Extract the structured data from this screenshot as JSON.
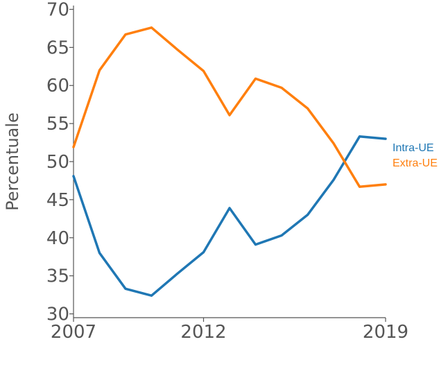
{
  "chart_data": {
    "type": "line",
    "title": "",
    "xlabel": "",
    "ylabel": "Percentuale",
    "x": [
      2007,
      2008,
      2009,
      2010,
      2011,
      2012,
      2013,
      2014,
      2015,
      2016,
      2017,
      2018,
      2019
    ],
    "xticks": [
      "2007",
      "2012",
      "2019"
    ],
    "yticks": [
      "30",
      "35",
      "40",
      "45",
      "50",
      "55",
      "60",
      "65",
      "70"
    ],
    "xlim": [
      2007,
      2019
    ],
    "ylim": [
      29.5,
      70.5
    ],
    "grid": false,
    "legend": "right-end labels",
    "series": [
      {
        "name": "Intra-UE",
        "color": "#1f77b4",
        "values": [
          48.1,
          38.0,
          33.3,
          32.4,
          35.3,
          38.1,
          43.9,
          39.1,
          40.3,
          43.0,
          47.6,
          53.3,
          53.0
        ]
      },
      {
        "name": "Extra-UE",
        "color": "#ff7f0e",
        "values": [
          51.9,
          62.0,
          66.7,
          67.6,
          64.7,
          61.9,
          56.1,
          60.9,
          59.7,
          57.0,
          52.4,
          46.7,
          47.0
        ]
      }
    ]
  }
}
